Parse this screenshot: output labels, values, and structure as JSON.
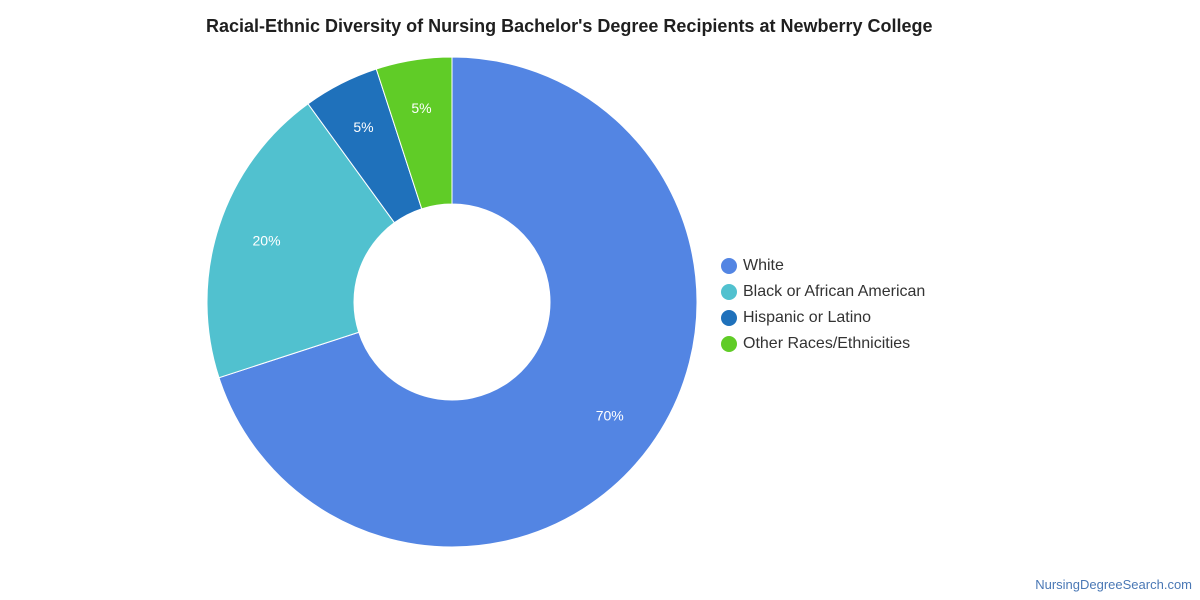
{
  "chart_data": {
    "type": "pie",
    "variant": "donut",
    "title": "Racial-Ethnic Diversity of Nursing Bachelor's Degree Recipients at Newberry College",
    "slices": [
      {
        "name": "White",
        "value": 70,
        "label": "70%",
        "color": "#5385e3"
      },
      {
        "name": "Black or African American",
        "value": 20,
        "label": "20%",
        "color": "#51c1cf"
      },
      {
        "name": "Hispanic or Latino",
        "value": 5,
        "label": "5%",
        "color": "#1f71bb"
      },
      {
        "name": "Other Races/Ethnicities",
        "value": 5,
        "label": "5%",
        "color": "#60cc27"
      }
    ],
    "legend_position": "right"
  },
  "source": {
    "text": "NursingDegreeSearch.com"
  }
}
